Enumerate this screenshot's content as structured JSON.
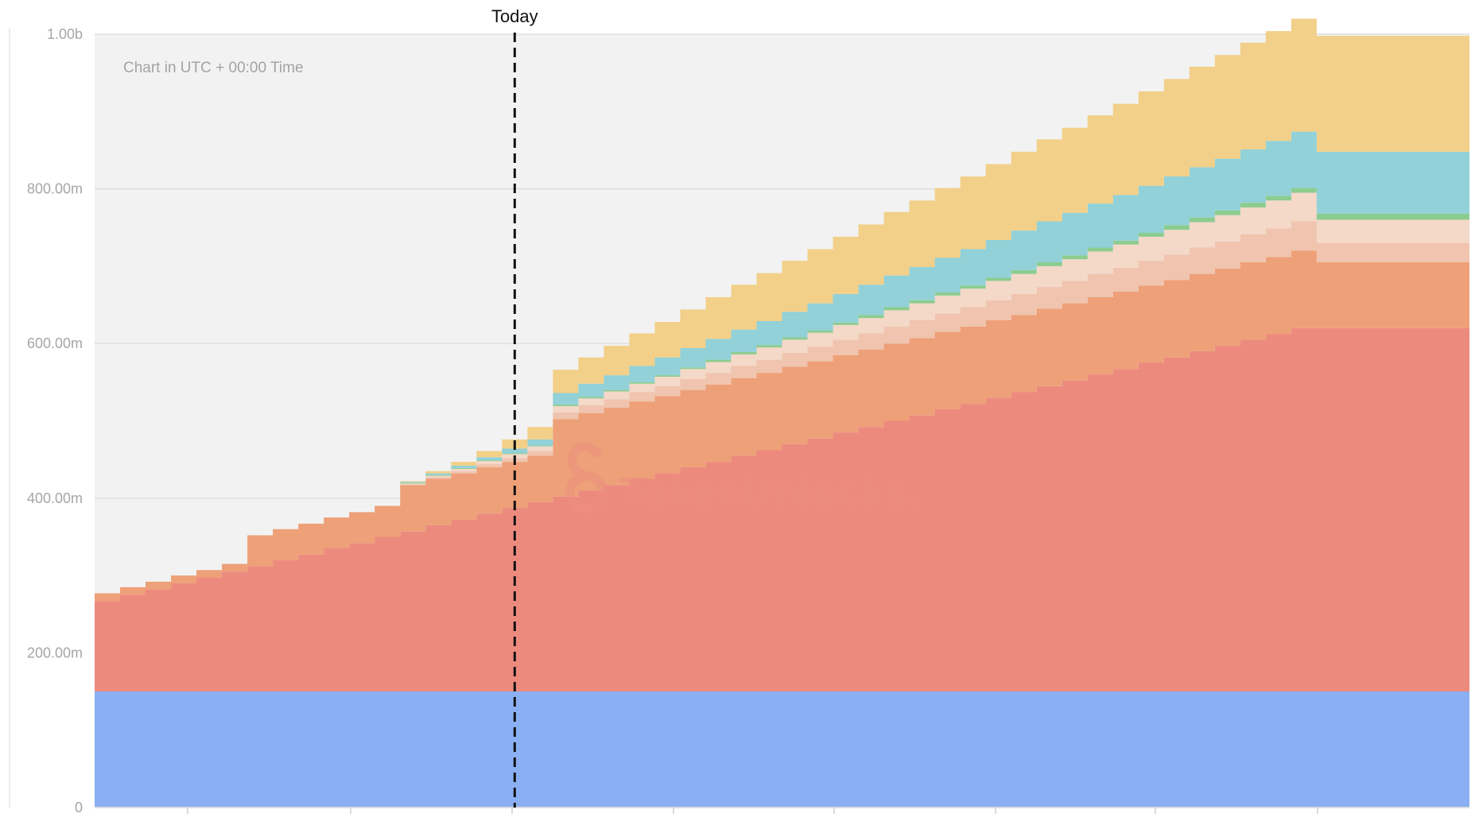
{
  "chart_data": {
    "type": "area",
    "stacked": true,
    "step": true,
    "note": "Chart in UTC + 00:00 Time",
    "marker": {
      "label": "Today",
      "x": 16.5
    },
    "watermark": "TokenUnlocks.",
    "y_ticks": [
      "0",
      "200.00m",
      "400.00m",
      "600.00m",
      "800.00m",
      "1.00b"
    ],
    "ylim": [
      0,
      1000000000
    ],
    "xlim": [
      0,
      54
    ],
    "grid": "horizontal",
    "colors": {
      "background": "#f2f2f2",
      "grid": "#d9d9d9",
      "marker": "#111111",
      "watermark": "#ec8e80"
    },
    "series": [
      {
        "color": "#8ab0f3",
        "values": [
          150000000,
          150000000,
          150000000,
          150000000,
          150000000,
          150000000,
          150000000,
          150000000,
          150000000,
          150000000,
          150000000,
          150000000,
          150000000,
          150000000,
          150000000,
          150000000,
          150000000,
          150000000,
          150000000,
          150000000,
          150000000,
          150000000,
          150000000,
          150000000,
          150000000,
          150000000,
          150000000,
          150000000,
          150000000,
          150000000,
          150000000,
          150000000,
          150000000,
          150000000,
          150000000,
          150000000,
          150000000,
          150000000,
          150000000,
          150000000,
          150000000,
          150000000,
          150000000,
          150000000,
          150000000,
          150000000,
          150000000,
          150000000,
          150000000,
          150000000,
          150000000,
          150000000,
          150000000,
          150000000
        ]
      },
      {
        "color": "#ed8a7e",
        "values": [
          117000000,
          125000000,
          132000000,
          140000000,
          147000000,
          155000000,
          162000000,
          170000000,
          177000000,
          185000000,
          192000000,
          200000000,
          207000000,
          215000000,
          222000000,
          230000000,
          237000000,
          245000000,
          252000000,
          260000000,
          267000000,
          275000000,
          282000000,
          290000000,
          297000000,
          305000000,
          312000000,
          320000000,
          327000000,
          335000000,
          342000000,
          350000000,
          357000000,
          365000000,
          372000000,
          380000000,
          387000000,
          395000000,
          402000000,
          410000000,
          417000000,
          425000000,
          432000000,
          440000000,
          447000000,
          455000000,
          462000000,
          470000000,
          470000000,
          470000000,
          470000000,
          470000000,
          470000000,
          470000000
        ]
      },
      {
        "color": "#eea078",
        "values": [
          10000000,
          10000000,
          10000000,
          10000000,
          10000000,
          10000000,
          40000000,
          40000000,
          40000000,
          40000000,
          40000000,
          40000000,
          60000000,
          60000000,
          60000000,
          60000000,
          60000000,
          60000000,
          100000000,
          100000000,
          100000000,
          100000000,
          100000000,
          100000000,
          100000000,
          100000000,
          100000000,
          100000000,
          100000000,
          100000000,
          100000000,
          100000000,
          100000000,
          100000000,
          100000000,
          100000000,
          100000000,
          100000000,
          100000000,
          100000000,
          100000000,
          100000000,
          100000000,
          100000000,
          100000000,
          100000000,
          100000000,
          100000000,
          85000000,
          85000000,
          85000000,
          85000000,
          85000000,
          85000000
        ]
      },
      {
        "color": "#f0c4ae",
        "values": [
          0,
          0,
          0,
          0,
          0,
          0,
          0,
          0,
          0,
          0,
          0,
          0,
          1000000,
          2000000,
          3000000,
          4000000,
          5000000,
          6000000,
          9000000,
          10000000,
          11000000,
          12000000,
          13000000,
          14000000,
          15000000,
          16000000,
          17000000,
          18000000,
          19000000,
          20000000,
          21000000,
          22000000,
          23000000,
          24000000,
          25000000,
          26000000,
          27000000,
          28000000,
          29000000,
          30000000,
          31000000,
          32000000,
          33000000,
          34000000,
          35000000,
          36000000,
          37000000,
          38000000,
          25000000,
          25000000,
          25000000,
          25000000,
          25000000,
          25000000
        ]
      },
      {
        "color": "#f4d8c8",
        "values": [
          0,
          0,
          0,
          0,
          0,
          0,
          0,
          0,
          0,
          0,
          0,
          0,
          1000000,
          2000000,
          3000000,
          4000000,
          5000000,
          6000000,
          8000000,
          9000000,
          10000000,
          11000000,
          12000000,
          13000000,
          14000000,
          15000000,
          16000000,
          17000000,
          18000000,
          19000000,
          20000000,
          21000000,
          22000000,
          23000000,
          24000000,
          25000000,
          26000000,
          27000000,
          28000000,
          29000000,
          30000000,
          31000000,
          32000000,
          33000000,
          34000000,
          35000000,
          36000000,
          37000000,
          30000000,
          30000000,
          30000000,
          30000000,
          30000000,
          30000000
        ]
      },
      {
        "color": "#8ccc8e",
        "values": [
          0,
          0,
          0,
          0,
          0,
          0,
          0,
          0,
          0,
          0,
          0,
          0,
          1000000,
          1000000,
          1000000,
          1000000,
          1000000,
          1000000,
          2000000,
          2000000,
          2000000,
          2000000,
          2000000,
          2000000,
          3000000,
          3000000,
          3000000,
          3000000,
          3000000,
          3000000,
          4000000,
          4000000,
          4000000,
          4000000,
          4000000,
          4000000,
          5000000,
          5000000,
          5000000,
          5000000,
          5000000,
          5000000,
          6000000,
          6000000,
          6000000,
          6000000,
          6000000,
          6000000,
          8000000,
          8000000,
          8000000,
          8000000,
          8000000,
          8000000
        ]
      },
      {
        "color": "#92d1d8",
        "values": [
          0,
          0,
          0,
          0,
          0,
          0,
          0,
          0,
          0,
          0,
          0,
          0,
          1000000,
          2000000,
          3000000,
          4000000,
          6000000,
          8000000,
          15000000,
          17000000,
          19000000,
          21000000,
          23000000,
          25000000,
          27000000,
          29000000,
          31000000,
          33000000,
          35000000,
          37000000,
          39000000,
          41000000,
          43000000,
          45000000,
          47000000,
          49000000,
          51000000,
          53000000,
          55000000,
          57000000,
          59000000,
          61000000,
          63000000,
          65000000,
          67000000,
          69000000,
          71000000,
          73000000,
          80000000,
          80000000,
          80000000,
          80000000,
          80000000,
          80000000
        ]
      },
      {
        "color": "#f2d089",
        "values": [
          0,
          0,
          0,
          0,
          0,
          0,
          0,
          0,
          0,
          0,
          0,
          0,
          1000000,
          3000000,
          5000000,
          8000000,
          12000000,
          16000000,
          30000000,
          34000000,
          38000000,
          42000000,
          46000000,
          50000000,
          54000000,
          58000000,
          62000000,
          66000000,
          70000000,
          74000000,
          78000000,
          82000000,
          86000000,
          90000000,
          94000000,
          98000000,
          102000000,
          106000000,
          110000000,
          114000000,
          118000000,
          122000000,
          126000000,
          130000000,
          134000000,
          138000000,
          142000000,
          146000000,
          150000000,
          150000000,
          150000000,
          150000000,
          150000000,
          150000000
        ]
      }
    ]
  }
}
